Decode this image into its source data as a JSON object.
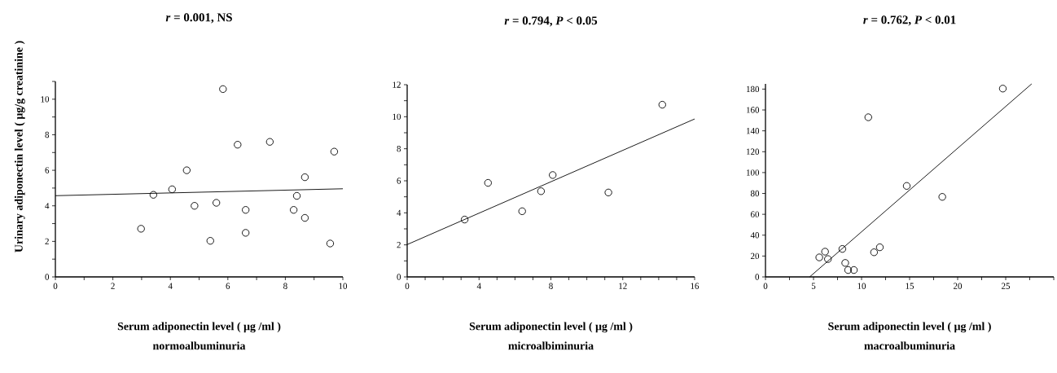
{
  "chart_data": [
    {
      "type": "scatter",
      "title": "*r* = 0.001,  NS",
      "xlabel": "Serum adiponectin level ( μg /ml )",
      "ylabel": "Urinary adiponectin level ( μg/g creatinine )",
      "annotations": [
        "normoalbuminuria"
      ],
      "xlim": [
        0,
        10
      ],
      "ylim": [
        0,
        11
      ],
      "xticks": [
        0,
        {
          "value": 1,
          "label": null
        },
        2,
        {
          "value": 3,
          "label": null
        },
        4,
        {
          "value": 5,
          "label": null
        },
        6,
        {
          "value": 7,
          "label": null
        },
        8,
        {
          "value": 9,
          "label": null
        },
        10
      ],
      "yticks": [
        0,
        {
          "value": 1,
          "label": null
        },
        2,
        {
          "value": 3,
          "label": null
        },
        4,
        {
          "value": 5,
          "label": null
        },
        6,
        {
          "value": 7,
          "label": null
        },
        8,
        {
          "value": 9,
          "label": null
        },
        10,
        {
          "value": 11,
          "label": null
        }
      ],
      "series": [
        {
          "marker": "circle",
          "color": "#000000",
          "x": [
            2.98,
            3.41,
            4.06,
            4.57,
            4.84,
            5.39,
            5.6,
            5.83,
            6.34,
            6.62,
            6.62,
            7.46,
            8.29,
            8.4,
            8.68,
            8.68,
            9.56,
            9.7
          ],
          "values": [
            2.71,
            4.62,
            4.93,
            6.0,
            4.0,
            2.03,
            4.17,
            10.57,
            7.44,
            3.77,
            2.48,
            7.6,
            3.77,
            4.56,
            3.32,
            5.61,
            1.88,
            7.05
          ]
        },
        {
          "type": "line",
          "marker": "none",
          "color": "#000000",
          "x": [
            0,
            10
          ],
          "values": [
            4.57,
            4.96
          ]
        }
      ]
    },
    {
      "type": "scatter",
      "title": "*r* = 0.794,  *P* < 0.05",
      "xlabel": "Serum adiponectin level ( μg /ml )",
      "annotations": [
        "microalbiminuria"
      ],
      "xlim": [
        0,
        16
      ],
      "ylim": [
        0,
        12
      ],
      "xticks": [
        0,
        {
          "value": 1,
          "label": null
        },
        {
          "value": 2,
          "label": null
        },
        {
          "value": 3,
          "label": null
        },
        4,
        {
          "value": 5,
          "label": null
        },
        {
          "value": 6,
          "label": null
        },
        {
          "value": 7,
          "label": null
        },
        8,
        {
          "value": 9,
          "label": null
        },
        {
          "value": 10,
          "label": null
        },
        {
          "value": 11,
          "label": null
        },
        12,
        {
          "value": 13,
          "label": null
        },
        {
          "value": 14,
          "label": null
        },
        {
          "value": 15,
          "label": null
        },
        16
      ],
      "yticks": [
        0,
        {
          "value": 1,
          "label": null
        },
        2,
        {
          "value": 3,
          "label": null
        },
        4,
        {
          "value": 5,
          "label": null
        },
        6,
        {
          "value": 7,
          "label": null
        },
        8,
        {
          "value": 9,
          "label": null
        },
        10,
        {
          "value": 11,
          "label": null
        },
        12
      ],
      "series": [
        {
          "marker": "circle",
          "color": "#000000",
          "x": [
            3.2,
            4.5,
            6.4,
            7.45,
            8.1,
            11.2,
            14.2
          ],
          "values": [
            3.58,
            5.87,
            4.1,
            5.35,
            6.36,
            5.27,
            10.75
          ]
        },
        {
          "type": "line",
          "marker": "none",
          "color": "#000000",
          "x": [
            0,
            16
          ],
          "values": [
            2.02,
            9.86
          ]
        }
      ]
    },
    {
      "type": "scatter",
      "title": "*r* = 0.762,  *P* < 0.01",
      "xlabel": "Serum adiponectin level ( μg /ml )",
      "annotations": [
        "macroalbuminuria"
      ],
      "xlim": [
        0,
        30
      ],
      "ylim": [
        0,
        185
      ],
      "xticks": [
        0,
        {
          "value": 2.5,
          "label": null
        },
        5,
        {
          "value": 7.5,
          "label": null
        },
        10,
        {
          "value": 12.5,
          "label": null
        },
        15,
        {
          "value": 17.5,
          "label": null
        },
        20,
        {
          "value": 22.5,
          "label": null
        },
        25,
        {
          "value": 27.5,
          "label": null
        },
        {
          "value": 30,
          "label": null
        }
      ],
      "yticks": [
        0,
        20,
        40,
        60,
        80,
        100,
        120,
        140,
        160,
        180
      ],
      "series": [
        {
          "marker": "circle",
          "color": "#000000",
          "x": [
            5.6,
            6.2,
            6.5,
            8.0,
            8.3,
            8.6,
            9.2,
            10.7,
            11.3,
            11.9,
            14.7,
            18.4,
            24.7
          ],
          "values": [
            18.7,
            24.2,
            17.1,
            26.8,
            13.4,
            6.6,
            6.6,
            153,
            23.6,
            28.4,
            87.2,
            76.7,
            180.5
          ]
        },
        {
          "type": "line",
          "marker": "none",
          "color": "#000000",
          "x": [
            4.6,
            27.7
          ],
          "values": [
            0,
            185
          ]
        }
      ]
    }
  ]
}
